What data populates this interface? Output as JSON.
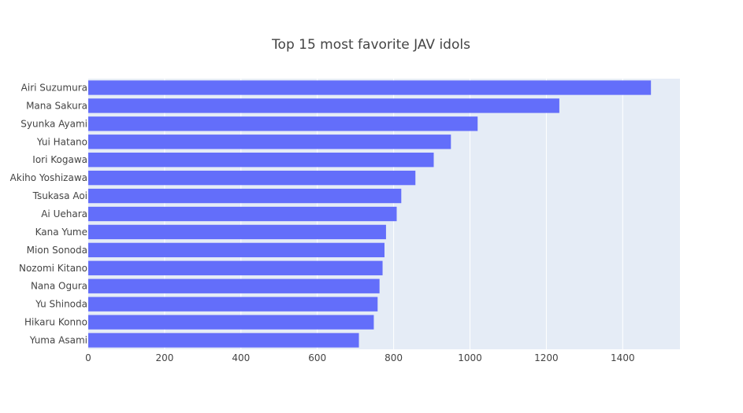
{
  "chart_data": {
    "type": "bar",
    "orientation": "horizontal",
    "title": "Top 15 most favorite JAV idols",
    "xlabel": "",
    "ylabel": "",
    "xlim": [
      0,
      1550
    ],
    "xticks": [
      0,
      200,
      400,
      600,
      800,
      1000,
      1200,
      1400
    ],
    "grid": true,
    "legend": "none",
    "categories": [
      "Airi Suzumura",
      "Mana Sakura",
      "Syunka Ayami",
      "Yui Hatano",
      "Iori Kogawa",
      "Akiho Yoshizawa",
      "Tsukasa Aoi",
      "Ai Uehara",
      "Kana Yume",
      "Mion Sonoda",
      "Nozomi Kitano",
      "Nana Ogura",
      "Yu Shinoda",
      "Hikaru Konno",
      "Yuma Asami"
    ],
    "values": [
      1474,
      1234,
      1020,
      950,
      905,
      857,
      820,
      808,
      780,
      776,
      771,
      763,
      758,
      748,
      709
    ],
    "colors": {
      "bar": "#636efa",
      "plot_bg": "#e5ecf6",
      "grid": "#ffffff",
      "text": "#444444"
    }
  }
}
